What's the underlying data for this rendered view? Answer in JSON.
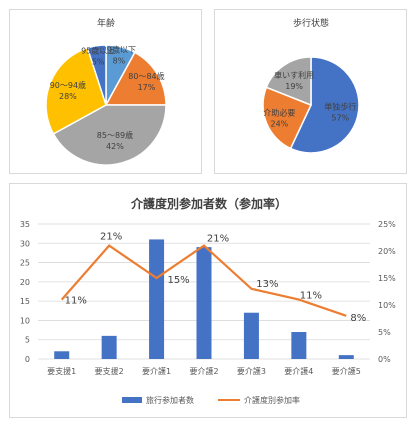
{
  "colors": {
    "blue": "#4472C4",
    "orange": "#ED7D31",
    "gray": "#A5A5A5",
    "yellow": "#FFC000",
    "lightblue": "#5B9BD5",
    "grid": "#d9d9d9",
    "text": "#404040"
  },
  "chart_data": [
    {
      "type": "pie",
      "title": "年齢",
      "slices": [
        {
          "name": "79歳以下",
          "value": 8,
          "label": "8%",
          "color": "#5B9BD5"
        },
        {
          "name": "80～84歳",
          "value": 17,
          "label": "17%",
          "color": "#ED7D31"
        },
        {
          "name": "85～89歳",
          "value": 42,
          "label": "42%",
          "color": "#A5A5A5"
        },
        {
          "name": "90～94歳",
          "value": 28,
          "label": "28%",
          "color": "#FFC000"
        },
        {
          "name": "95歳以上",
          "value": 5,
          "label": "5%",
          "color": "#4472C4"
        }
      ]
    },
    {
      "type": "pie",
      "title": "歩行状態",
      "slices": [
        {
          "name": "単独歩行",
          "value": 57,
          "label": "57%",
          "color": "#4472C4"
        },
        {
          "name": "介助必要",
          "value": 24,
          "label": "24%",
          "color": "#ED7D31"
        },
        {
          "name": "車いす利用",
          "value": 19,
          "label": "19%",
          "color": "#A5A5A5"
        }
      ]
    },
    {
      "type": "bar",
      "title": "介護度別参加者数（参加率）",
      "categories": [
        "要支援1",
        "要支援2",
        "要介護1",
        "要介護2",
        "要介護3",
        "要介護4",
        "要介護5"
      ],
      "series": [
        {
          "name": "旅行参加者数",
          "kind": "bar",
          "axis": "left",
          "values": [
            2,
            6,
            31,
            29,
            12,
            7,
            1
          ],
          "color": "#4472C4"
        },
        {
          "name": "介護度別参加率",
          "kind": "line",
          "axis": "right",
          "values": [
            11,
            21,
            15,
            21,
            13,
            11,
            8
          ],
          "labels": [
            "11%",
            "21%",
            "15%",
            "21%",
            "13%",
            "11%",
            "8%"
          ],
          "color": "#ED7D31"
        }
      ],
      "ylim": [
        0,
        35
      ],
      "yticks": [
        "0",
        "5",
        "10",
        "15",
        "20",
        "25",
        "30",
        "35"
      ],
      "y2lim": [
        0,
        25
      ],
      "y2ticks": [
        "0%",
        "5%",
        "10%",
        "15%",
        "20%",
        "25%"
      ],
      "grid": true,
      "legend": "bottom"
    }
  ]
}
